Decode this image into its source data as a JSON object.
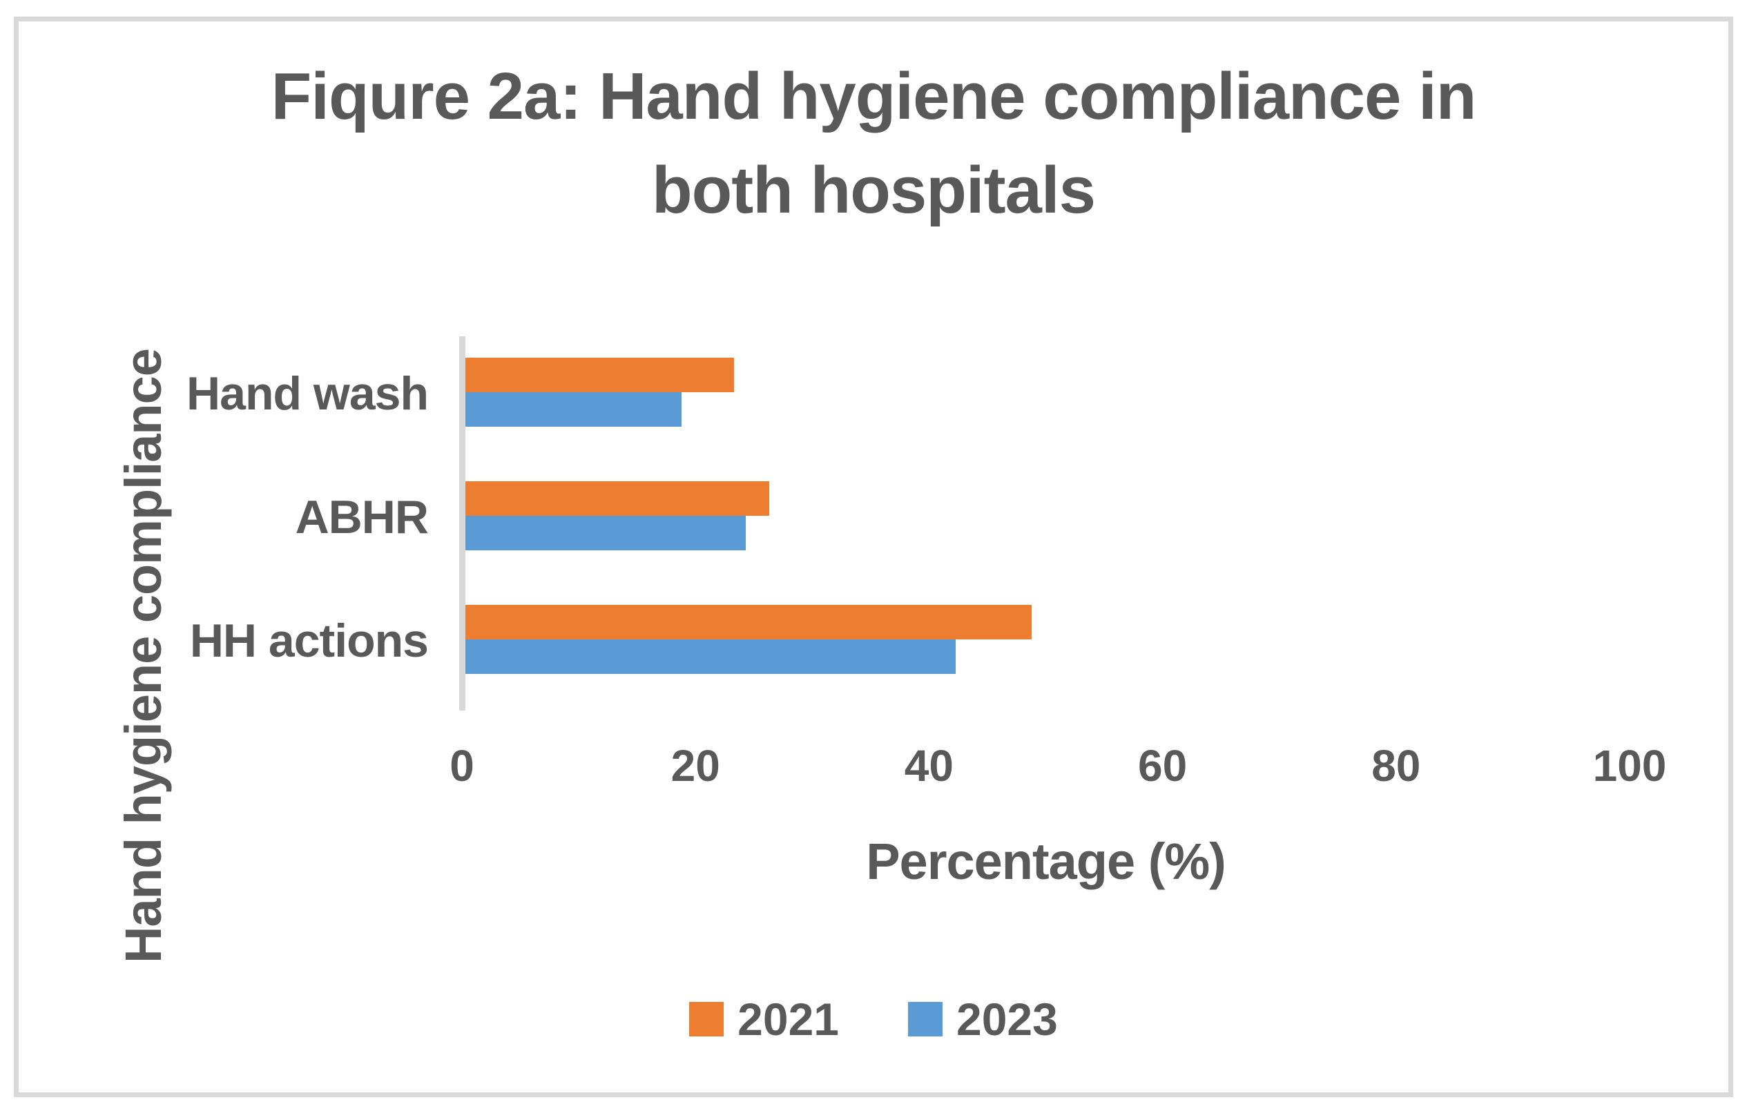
{
  "chart_data": {
    "type": "bar",
    "orientation": "horizontal",
    "title": "Fiqure 2a: Hand hygiene compliance in both hospitals",
    "title_lines": [
      "Fiqure 2a: Hand hygiene compliance in",
      "both hospitals"
    ],
    "categories": [
      "Hand wash",
      "ABHR",
      "HH actions"
    ],
    "series": [
      {
        "name": "2021",
        "color": "#ED7D31",
        "values": [
          23,
          26,
          48.5
        ]
      },
      {
        "name": "2023",
        "color": "#5B9BD5",
        "values": [
          18.5,
          24,
          42
        ]
      }
    ],
    "xlabel": "Percentage (%)",
    "ylabel": "Hand hygiene compliance",
    "xlim": [
      0,
      100
    ],
    "xticks": [
      0,
      20,
      40,
      60,
      80,
      100
    ],
    "grid": false,
    "legend_position": "bottom",
    "colors": {
      "text": "#595959",
      "axis_line": "#D9D9D9",
      "frame_border": "#D9D9D9",
      "background": "#FFFFFF"
    }
  }
}
